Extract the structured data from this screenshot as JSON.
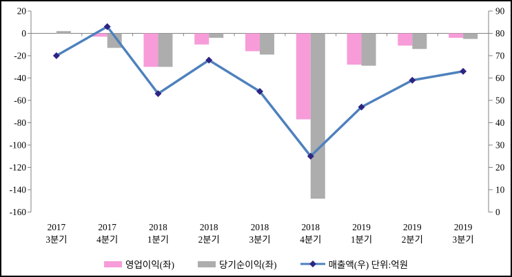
{
  "chart_data": {
    "type": "bar",
    "subtype": "combo-bar-line-dual-axis",
    "title": "",
    "categories": [
      {
        "line1": "2017",
        "line2": "3분기"
      },
      {
        "line1": "2017",
        "line2": "4분기"
      },
      {
        "line1": "2018",
        "line2": "1분기"
      },
      {
        "line1": "2018",
        "line2": "2분기"
      },
      {
        "line1": "2018",
        "line2": "3분기"
      },
      {
        "line1": "2018",
        "line2": "4분기"
      },
      {
        "line1": "2019",
        "line2": "1분기"
      },
      {
        "line1": "2019",
        "line2": "2분기"
      },
      {
        "line1": "2019",
        "line2": "3분기"
      }
    ],
    "series": [
      {
        "name": "영업이익(좌)",
        "kind": "bar",
        "axis": "left",
        "color": "#F79CD9",
        "values": [
          0,
          -3,
          -30,
          -10,
          -16,
          -77,
          -28,
          -11,
          -4
        ]
      },
      {
        "name": "당기순이익(좌)",
        "kind": "bar",
        "axis": "left",
        "color": "#ADADAD",
        "values": [
          2,
          -13,
          -30,
          -4,
          -19,
          -148,
          -29,
          -14,
          -5
        ]
      },
      {
        "name": "매출액(우) 단위:억원",
        "kind": "line",
        "axis": "right",
        "color": "#4E81BD",
        "marker": "diamond",
        "marker_color": "#2D2583",
        "values": [
          70,
          83,
          53,
          68,
          54,
          25,
          47,
          59,
          63
        ]
      }
    ],
    "left_axis": {
      "min": -160,
      "max": 20,
      "tick_step": 20,
      "ticks": [
        20,
        0,
        -20,
        -40,
        -60,
        -80,
        -100,
        -120,
        -140,
        -160
      ]
    },
    "right_axis": {
      "min": 0,
      "max": 90,
      "tick_step": 10,
      "ticks": [
        90,
        80,
        70,
        60,
        50,
        40,
        30,
        20,
        10,
        0
      ]
    },
    "gridlines": "zero-line-only",
    "legend_position": "bottom"
  },
  "legend": {
    "items": [
      {
        "label": "영업이익(좌)",
        "swatch": "bar",
        "color": "#F79CD9"
      },
      {
        "label": "당기순이익(좌)",
        "swatch": "bar",
        "color": "#ADADAD"
      },
      {
        "label": "매출액(우) 단위:억원",
        "swatch": "line-diamond",
        "line_color": "#4E81BD",
        "marker_color": "#2D2583"
      }
    ]
  },
  "colors": {
    "background": "#FFFFFF",
    "border": "#000000",
    "axis_line": "#808080",
    "zero_line": "#808080",
    "text": "#000000"
  }
}
